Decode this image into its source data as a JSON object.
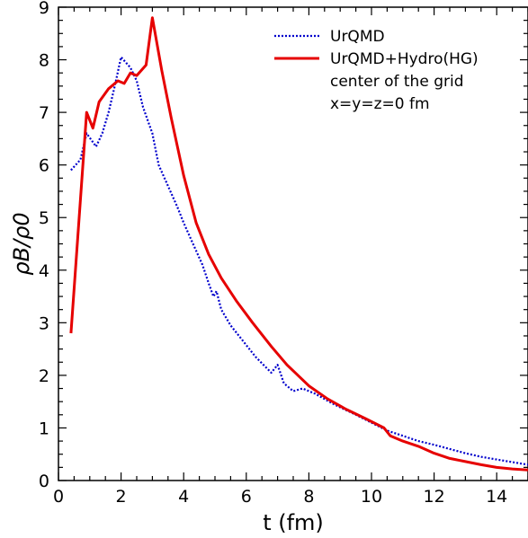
{
  "chart_data": {
    "type": "line",
    "xlabel": "t (fm)",
    "ylabel": "ρB/ρ0",
    "xlim": [
      0,
      15
    ],
    "ylim": [
      0,
      9
    ],
    "x_ticks": [
      "0",
      "2",
      "4",
      "6",
      "8",
      "10",
      "12",
      "14"
    ],
    "y_ticks": [
      "0",
      "1",
      "2",
      "3",
      "4",
      "5",
      "6",
      "7",
      "8",
      "9"
    ],
    "annotations": [
      "center of the grid",
      "x=y=z=0 fm"
    ],
    "series": [
      {
        "name": "UrQMD",
        "color": "#0000cc",
        "style": "dotted",
        "points": [
          [
            0.4,
            5.9
          ],
          [
            0.7,
            6.1
          ],
          [
            0.9,
            6.6
          ],
          [
            1.2,
            6.35
          ],
          [
            1.4,
            6.6
          ],
          [
            1.6,
            7.0
          ],
          [
            1.8,
            7.5
          ],
          [
            2.0,
            8.05
          ],
          [
            2.3,
            7.85
          ],
          [
            2.5,
            7.6
          ],
          [
            2.7,
            7.1
          ],
          [
            3.0,
            6.6
          ],
          [
            3.2,
            6.0
          ],
          [
            3.5,
            5.6
          ],
          [
            3.8,
            5.2
          ],
          [
            4.0,
            4.9
          ],
          [
            4.3,
            4.5
          ],
          [
            4.6,
            4.1
          ],
          [
            4.8,
            3.75
          ],
          [
            4.95,
            3.5
          ],
          [
            5.05,
            3.6
          ],
          [
            5.2,
            3.25
          ],
          [
            5.5,
            2.95
          ],
          [
            5.9,
            2.65
          ],
          [
            6.3,
            2.35
          ],
          [
            6.8,
            2.05
          ],
          [
            7.0,
            2.2
          ],
          [
            7.2,
            1.85
          ],
          [
            7.5,
            1.7
          ],
          [
            7.8,
            1.75
          ],
          [
            8.2,
            1.65
          ],
          [
            8.8,
            1.45
          ],
          [
            9.5,
            1.25
          ],
          [
            10.0,
            1.1
          ],
          [
            10.5,
            0.95
          ],
          [
            11.0,
            0.85
          ],
          [
            11.5,
            0.75
          ],
          [
            12.0,
            0.68
          ],
          [
            12.5,
            0.6
          ],
          [
            13.0,
            0.52
          ],
          [
            13.5,
            0.45
          ],
          [
            14.0,
            0.4
          ],
          [
            14.5,
            0.35
          ],
          [
            15.0,
            0.3
          ]
        ]
      },
      {
        "name": "UrQMD+Hydro(HG)",
        "color": "#e60000",
        "style": "solid",
        "points": [
          [
            0.4,
            2.8
          ],
          [
            0.9,
            7.0
          ],
          [
            1.1,
            6.7
          ],
          [
            1.3,
            7.2
          ],
          [
            1.6,
            7.45
          ],
          [
            1.9,
            7.6
          ],
          [
            2.1,
            7.55
          ],
          [
            2.3,
            7.75
          ],
          [
            2.5,
            7.7
          ],
          [
            2.8,
            7.9
          ],
          [
            3.0,
            8.8
          ],
          [
            3.3,
            7.8
          ],
          [
            3.6,
            6.9
          ],
          [
            4.0,
            5.8
          ],
          [
            4.4,
            4.9
          ],
          [
            4.8,
            4.3
          ],
          [
            5.2,
            3.85
          ],
          [
            5.7,
            3.4
          ],
          [
            6.2,
            3.0
          ],
          [
            6.8,
            2.55
          ],
          [
            7.3,
            2.2
          ],
          [
            8.0,
            1.8
          ],
          [
            8.6,
            1.55
          ],
          [
            9.2,
            1.35
          ],
          [
            9.8,
            1.18
          ],
          [
            10.4,
            1.0
          ],
          [
            10.6,
            0.85
          ],
          [
            11.0,
            0.75
          ],
          [
            11.5,
            0.65
          ],
          [
            12.0,
            0.52
          ],
          [
            12.5,
            0.42
          ],
          [
            13.0,
            0.36
          ],
          [
            13.5,
            0.3
          ],
          [
            14.0,
            0.25
          ],
          [
            14.5,
            0.22
          ],
          [
            15.0,
            0.2
          ]
        ]
      }
    ]
  }
}
